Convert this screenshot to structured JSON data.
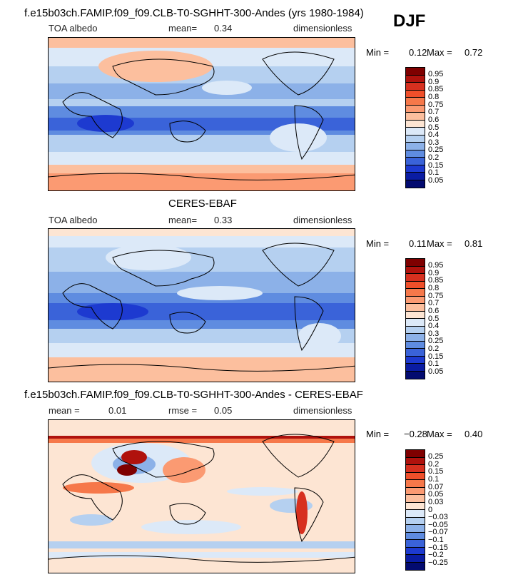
{
  "season": "DJF",
  "panels": [
    {
      "title": "f.e15b03ch.FAMIP.f09_f09.CLB-T0-SGHHT-300-Andes (yrs 1980-1984)",
      "left_label": "TOA albedo",
      "mean_label": "mean=",
      "mean_value": "0.34",
      "right_label": "dimensionless",
      "min_label": "Min =",
      "min_value": "0.12",
      "max_label": "Max =",
      "max_value": "0.72",
      "colorbar_labels": [
        "0.95",
        "0.9",
        "0.85",
        "0.8",
        "0.75",
        "0.7",
        "0.6",
        "0.5",
        "0.4",
        "0.3",
        "0.25",
        "0.2",
        "0.15",
        "0.1",
        "0.05"
      ],
      "colorbar_colors": [
        "#7f0000",
        "#b0120d",
        "#d7301f",
        "#ef4f2a",
        "#f6784a",
        "#fb9a72",
        "#fcbf9e",
        "#fde5d3",
        "#dce9f8",
        "#b5d0f0",
        "#8cb1e8",
        "#5f8ce0",
        "#3a63d9",
        "#1d3ad0",
        "#0a1ca3",
        "#030b70"
      ]
    },
    {
      "title": "CERES-EBAF",
      "left_label": "TOA albedo",
      "mean_label": "mean=",
      "mean_value": "0.33",
      "right_label": "dimensionless",
      "min_label": "Min =",
      "min_value": "0.11",
      "max_label": "Max =",
      "max_value": "0.81",
      "colorbar_labels": [
        "0.95",
        "0.9",
        "0.85",
        "0.8",
        "0.75",
        "0.7",
        "0.6",
        "0.5",
        "0.4",
        "0.3",
        "0.25",
        "0.2",
        "0.15",
        "0.1",
        "0.05"
      ],
      "colorbar_colors": [
        "#7f0000",
        "#b0120d",
        "#d7301f",
        "#ef4f2a",
        "#f6784a",
        "#fb9a72",
        "#fcbf9e",
        "#fde5d3",
        "#dce9f8",
        "#b5d0f0",
        "#8cb1e8",
        "#5f8ce0",
        "#3a63d9",
        "#1d3ad0",
        "#0a1ca3",
        "#030b70"
      ]
    },
    {
      "title": "f.e15b03ch.FAMIP.f09_f09.CLB-T0-SGHHT-300-Andes - CERES-EBAF",
      "left_label": "mean =",
      "mean_label": "rmse =",
      "left_value": "0.01",
      "mean_value": "0.05",
      "right_label": "dimensionless",
      "min_label": "Min =",
      "min_value": "−0.28",
      "max_label": "Max =",
      "max_value": "0.40",
      "colorbar_labels": [
        "0.25",
        "0.2",
        "0.15",
        "0.1",
        "0.07",
        "0.05",
        "0.03",
        "0",
        "−0.03",
        "−0.05",
        "−0.07",
        "−0.1",
        "−0.15",
        "−0.2",
        "−0.25"
      ],
      "colorbar_colors": [
        "#7f0000",
        "#b0120d",
        "#d7301f",
        "#ef4f2a",
        "#f6784a",
        "#fb9a72",
        "#fcbf9e",
        "#fde5d3",
        "#dce9f8",
        "#b5d0f0",
        "#8cb1e8",
        "#5f8ce0",
        "#3a63d9",
        "#1d3ad0",
        "#0a1ca3",
        "#030b70"
      ]
    }
  ]
}
